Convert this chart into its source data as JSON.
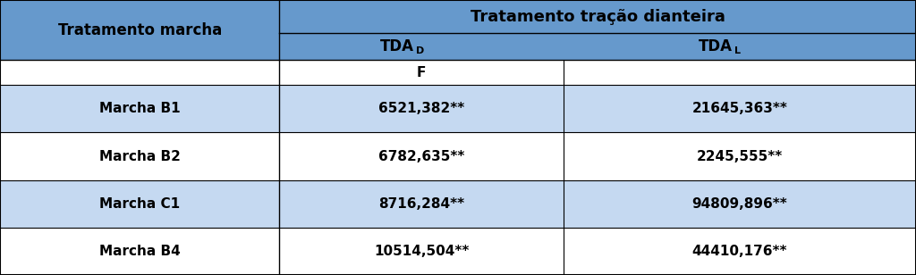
{
  "header_col1": "Tratamento marcha",
  "header_group": "Tratamento tração dianteira",
  "sub_headers_base": [
    "TDA",
    "TDA"
  ],
  "sub_headers_sub": [
    "D",
    "L"
  ],
  "f_label": "F",
  "rows": [
    [
      "Marcha B1",
      "6521,382**",
      "21645,363**"
    ],
    [
      "Marcha B2",
      "6782,635**",
      "2245,555**"
    ],
    [
      "Marcha C1",
      "8716,284**",
      "94809,896**"
    ],
    [
      "Marcha B4",
      "10514,504**",
      "44410,176**"
    ]
  ],
  "header_bg": "#6699CC",
  "row_bg_alt": "#C5D9F1",
  "row_bg_white": "#FFFFFF",
  "fig_width": 10.24,
  "fig_height": 3.08,
  "col_split": 0.305,
  "col_mid": 0.615
}
